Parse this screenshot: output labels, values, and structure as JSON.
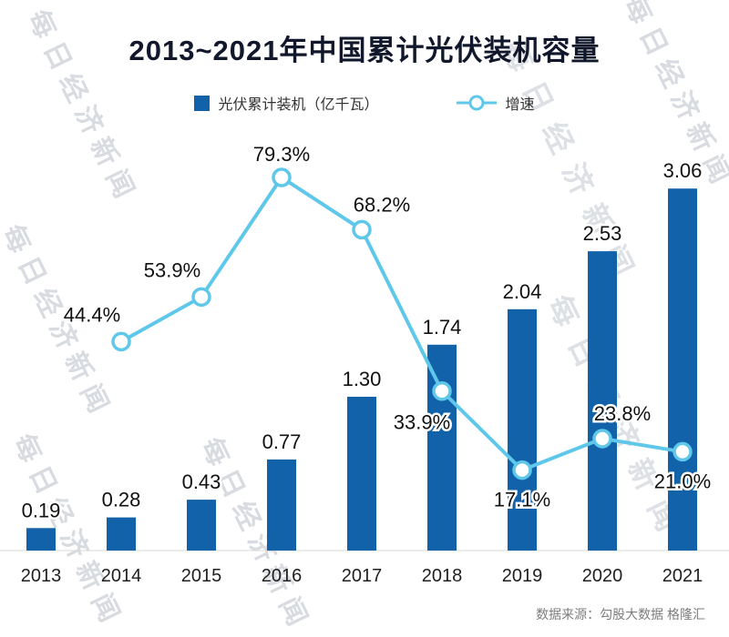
{
  "title": "2013~2021年中国累计光伏装机容量",
  "legend": {
    "bar_label": "光伏累计装机（亿千瓦）",
    "line_label": "增速"
  },
  "source": "数据来源：勾股大数据 格隆汇",
  "watermark": "每日经济新闻",
  "colors": {
    "bar": "#1262AA",
    "line": "#5FC8EA",
    "marker_fill": "#FFFFFF",
    "label": "#111111",
    "axis_label": "#1F1F1F",
    "baseline": "#D8D8D8",
    "title": "#12182B",
    "source": "#7D7D7D"
  },
  "chart_data": {
    "type": "bar",
    "subtype": "bar+line combo, line on secondary axis",
    "categories": [
      "2013",
      "2014",
      "2015",
      "2016",
      "2017",
      "2018",
      "2019",
      "2020",
      "2021"
    ],
    "series": [
      {
        "name": "光伏累计装机（亿千瓦）",
        "type": "bar",
        "axis": "left",
        "values": [
          0.19,
          0.28,
          0.43,
          0.77,
          1.3,
          1.74,
          2.04,
          2.53,
          3.06
        ],
        "labels": [
          "0.19",
          "0.28",
          "0.43",
          "0.77",
          "1.30",
          "1.74",
          "2.04",
          "2.53",
          "3.06"
        ]
      },
      {
        "name": "增速",
        "type": "line",
        "axis": "right",
        "values": [
          null,
          44.4,
          53.9,
          79.3,
          68.2,
          33.9,
          17.1,
          23.8,
          21.0
        ],
        "labels": [
          null,
          "44.4%",
          "53.9%",
          "79.3%",
          "68.2%",
          "33.9%",
          "17.1%",
          "23.8%",
          "21.0%"
        ],
        "label_pos": [
          null,
          "above-left",
          "above-left",
          "above",
          "above-right",
          "below-left",
          "below",
          "above-right",
          "below"
        ]
      }
    ],
    "ylim": [
      0,
      3.5
    ],
    "y2lim": [
      0,
      88
    ],
    "grid": false,
    "legend_position": "top",
    "x_axis_visible": true,
    "y_axis_visible": false
  }
}
